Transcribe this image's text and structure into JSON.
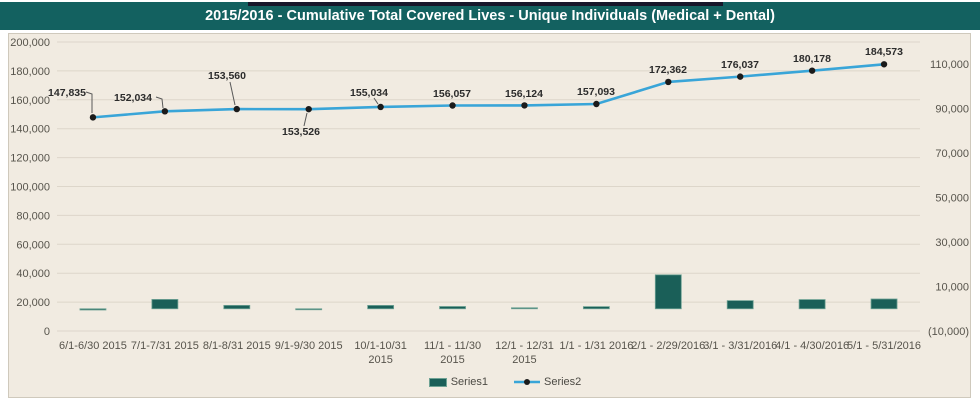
{
  "chart_data": {
    "type": "combo",
    "title": "2015/2016 - Cumulative Total Covered Lives - Unique Individuals (Medical + Dental)",
    "title_bar_color": "#136160",
    "background": "#f1ebe1",
    "gridline_color": "#ddd6ca",
    "grid": true,
    "categories": [
      [
        "6/1-6/30 2015"
      ],
      [
        "7/1-7/31 2015"
      ],
      [
        "8/1-8/31 2015"
      ],
      [
        "9/1-9/30 2015"
      ],
      [
        "10/1-10/31",
        "2015"
      ],
      [
        "11/1 - 11/30",
        "2015"
      ],
      [
        "12/1 - 12/31",
        "2015"
      ],
      [
        "1/1 - 1/31 2016"
      ],
      [
        "2/1 - 2/29/2016"
      ],
      [
        "3/1 - 3/31/2016"
      ],
      [
        "4/1 - 4/30/2016"
      ],
      [
        "5/1 - 5/31/2016"
      ]
    ],
    "series": [
      {
        "name": "Series1",
        "type": "bar",
        "axis": "secondary",
        "color": "#1a5f58",
        "border_color": "#6ea294",
        "values": [
          -550,
          4199,
          1526,
          -34,
          1508,
          1023,
          67,
          969,
          15269,
          3675,
          4141,
          4395
        ]
      },
      {
        "name": "Series2",
        "type": "line",
        "axis": "primary",
        "color": "#39a5d8",
        "marker_color": "#1b1b1b",
        "values": [
          147835,
          152034,
          153560,
          153526,
          155034,
          156057,
          156124,
          157093,
          172362,
          176037,
          180178,
          184573
        ],
        "data_labels": [
          "147,835",
          "152,034",
          "153,560",
          "153,526",
          "155,034",
          "156,057",
          "156,124",
          "157,093",
          "172,362",
          "176,037",
          "180,178",
          "184,573"
        ]
      }
    ],
    "left_axis": {
      "min": 0,
      "max": 200000,
      "step": 20000,
      "tick_labels": [
        "200,000",
        "180,000",
        "160,000",
        "140,000",
        "120,000",
        "100,000",
        "80,000",
        "60,000",
        "40,000",
        "20,000",
        "0"
      ]
    },
    "right_axis": {
      "min": -10000,
      "max": 120000,
      "step": 20000,
      "tick_values": [
        110000,
        90000,
        70000,
        50000,
        30000,
        10000,
        -10000
      ],
      "tick_labels": [
        "110,000",
        "90,000",
        "70,000",
        "50,000",
        "30,000",
        "10,000",
        "(10,000)"
      ]
    },
    "legend": {
      "position": "bottom",
      "entries": [
        "Series1",
        "Series2"
      ]
    }
  }
}
